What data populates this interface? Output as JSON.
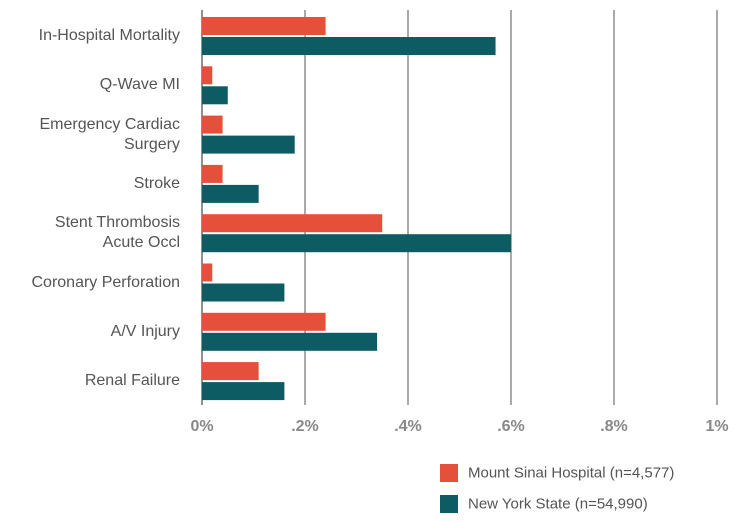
{
  "chart_data": {
    "type": "hbar",
    "categories": [
      "In-Hospital Mortality",
      "Q-Wave MI",
      "Emergency Cardiac\nSurgery",
      "Stroke",
      "Stent Thrombosis\nAcute Occl",
      "Coronary Perforation",
      "A/V Injury",
      "Renal Failure"
    ],
    "series": [
      {
        "name": "Mount Sinai Hospital (n=4,577)",
        "color": "#e4503a",
        "values": [
          0.24,
          0.02,
          0.04,
          0.04,
          0.35,
          0.02,
          0.24,
          0.11
        ]
      },
      {
        "name": "New York State (n=54,990)",
        "color": "#0d5c63",
        "values": [
          0.57,
          0.05,
          0.18,
          0.11,
          0.6,
          0.16,
          0.34,
          0.16
        ]
      }
    ],
    "xlim": [
      0,
      1
    ],
    "xticks": [
      {
        "value": 0,
        "label": "0%"
      },
      {
        "value": 0.2,
        "label": ".2%"
      },
      {
        "value": 0.4,
        "label": ".4%"
      },
      {
        "value": 0.6,
        "label": ".6%"
      },
      {
        "value": 0.8,
        "label": ".8%"
      },
      {
        "value": 1,
        "label": "1%"
      }
    ],
    "grid": true
  }
}
